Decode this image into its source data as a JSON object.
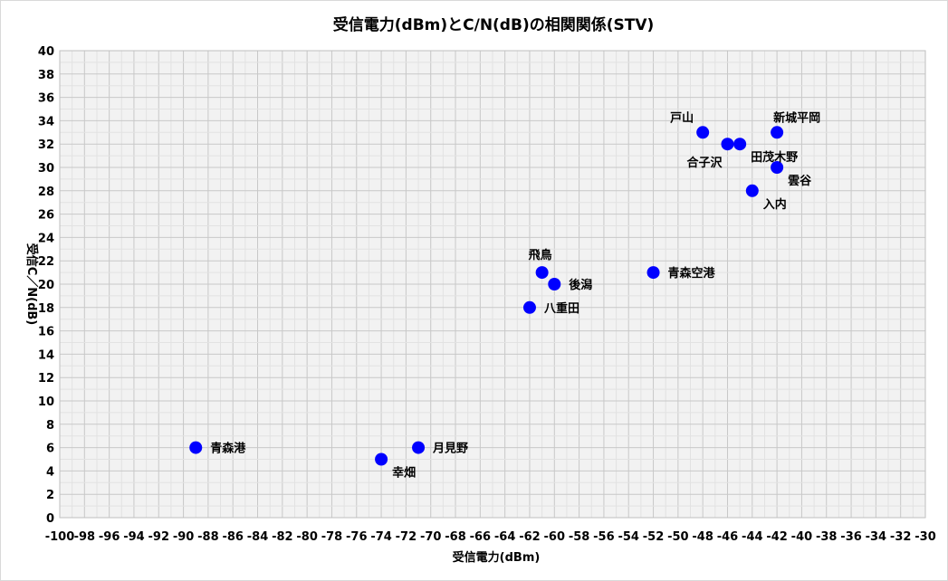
{
  "chart_data": {
    "type": "scatter",
    "title": "受信電力(dBm)とC/N(dB)の相関関係(STV)",
    "xlabel": "受信電力(dBm)",
    "ylabel": "受信C／N(dB)",
    "xlim": [
      -100,
      -30
    ],
    "ylim": [
      0,
      40
    ],
    "x_step": 2,
    "y_step": 2,
    "x_tick_labels": [
      "-100",
      "-98",
      "-96",
      "-94",
      "-92",
      "-90",
      "-88",
      "-86",
      "-84",
      "-82",
      "-80",
      "-78",
      "-76",
      "-74",
      "-72",
      "-70",
      "-68",
      "-66",
      "-64",
      "-62",
      "-60",
      "-58",
      "-56",
      "-54",
      "-52",
      "-50",
      "-48",
      "-46",
      "-44",
      "-42",
      "-40",
      "-38",
      "-36",
      "-34",
      "-32",
      "-30"
    ],
    "y_tick_labels": [
      "0",
      "2",
      "4",
      "6",
      "8",
      "10",
      "12",
      "14",
      "16",
      "18",
      "20",
      "22",
      "24",
      "26",
      "28",
      "30",
      "32",
      "34",
      "36",
      "38",
      "40"
    ],
    "grid": true,
    "marker_color": "#0000ff",
    "points": [
      {
        "label": "青森港",
        "x": -89,
        "y": 6,
        "label_pos": "right"
      },
      {
        "label": "幸畑",
        "x": -74,
        "y": 5,
        "label_pos": "below-right"
      },
      {
        "label": "月見野",
        "x": -71,
        "y": 6,
        "label_pos": "right"
      },
      {
        "label": "八重田",
        "x": -62,
        "y": 18,
        "label_pos": "right"
      },
      {
        "label": "飛鳥",
        "x": -61,
        "y": 21,
        "label_pos": "above"
      },
      {
        "label": "後潟",
        "x": -60,
        "y": 20,
        "label_pos": "right"
      },
      {
        "label": "青森空港",
        "x": -52,
        "y": 21,
        "label_pos": "right"
      },
      {
        "label": "戸山",
        "x": -48,
        "y": 33,
        "label_pos": "above-left"
      },
      {
        "label": "合子沢",
        "x": -46,
        "y": 32,
        "label_pos": "below-left"
      },
      {
        "label": "田茂木野",
        "x": -45,
        "y": 32,
        "label_pos": "below-right"
      },
      {
        "label": "入内",
        "x": -44,
        "y": 28,
        "label_pos": "below-right"
      },
      {
        "label": "新城平岡",
        "x": -42,
        "y": 33,
        "label_pos": "above-right"
      },
      {
        "label": "雲谷",
        "x": -42,
        "y": 30,
        "label_pos": "below-right"
      }
    ]
  }
}
